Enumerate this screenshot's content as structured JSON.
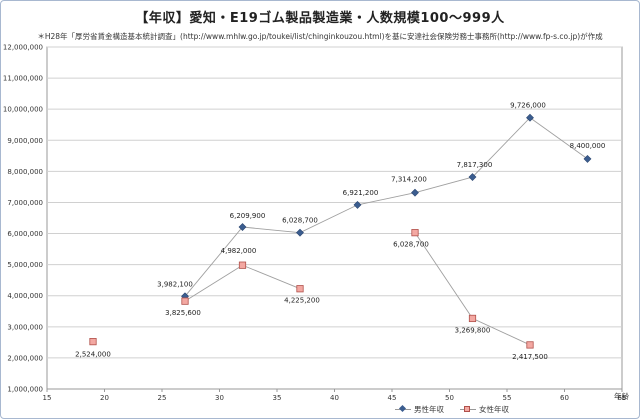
{
  "chart_data": {
    "type": "scatter",
    "title": "【年収】愛知・E19ゴム製品製造業・人数規模100～999人",
    "subtitle": "＊H28年「厚労省賃金構造基本統計調査」(http://www.mhlw.go.jp/toukei/list/chinginkouzou.html)を基に安達社会保険労務士事務所(http://www.fp-s.co.jp)が作成",
    "xlabel": "年齢",
    "ylabel": "",
    "xlim": [
      15,
      65
    ],
    "ylim": [
      1000000,
      12000000
    ],
    "xticks": [
      15,
      20,
      25,
      30,
      35,
      40,
      45,
      50,
      55,
      60,
      65
    ],
    "yticks": [
      1000000,
      2000000,
      3000000,
      4000000,
      5000000,
      6000000,
      7000000,
      8000000,
      9000000,
      10000000,
      11000000,
      12000000
    ],
    "ytick_labels": [
      "1,000,000",
      "2,000,000",
      "3,000,000",
      "4,000,000",
      "5,000,000",
      "6,000,000",
      "7,000,000",
      "8,000,000",
      "9,000,000",
      "10,000,000",
      "11,000,000",
      "12,000,000"
    ],
    "grid": "horizontal",
    "legend_position": "bottom",
    "series": [
      {
        "name": "男性年収",
        "color": "#3b5d8f",
        "marker": "diamond",
        "segments": [
          [
            [
              27,
              3982100
            ],
            [
              32,
              6209900
            ],
            [
              37,
              6028700
            ],
            [
              42,
              6921200
            ],
            [
              47,
              7314200
            ],
            [
              52,
              7817300
            ],
            [
              57,
              9726000
            ],
            [
              62,
              8400000
            ]
          ]
        ],
        "labels": [
          "3,982,100",
          "6,209,900",
          "6,028,700",
          "6,921,200",
          "7,314,200",
          "7,817,300",
          "9,726,000",
          "8,400,000"
        ]
      },
      {
        "name": "女性年収",
        "color": "#f3a8a2",
        "marker": "square",
        "segments": [
          [
            [
              19,
              2524000
            ]
          ],
          [
            [
              27,
              3825600
            ],
            [
              32,
              4982000
            ],
            [
              37,
              4225200
            ]
          ],
          [
            [
              47,
              6028700
            ],
            [
              52,
              3269800
            ],
            [
              57,
              2417500
            ]
          ]
        ],
        "labels": [
          "2,524,000",
          "3,825,600",
          "4,982,000",
          "4,225,200",
          "6,028,700",
          "3,269,800",
          "2,417,500"
        ]
      }
    ]
  }
}
